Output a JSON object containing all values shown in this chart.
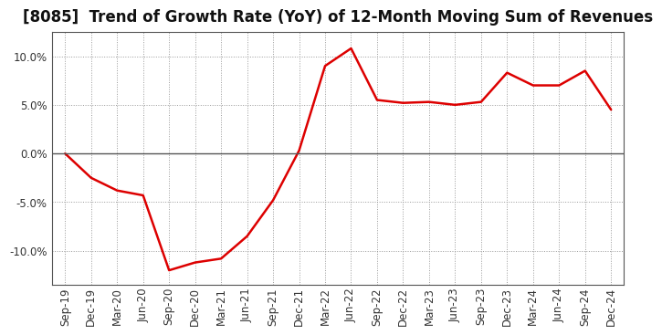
{
  "title": "[8085]  Trend of Growth Rate (YoY) of 12-Month Moving Sum of Revenues",
  "x_labels": [
    "Sep-19",
    "Dec-19",
    "Mar-20",
    "Jun-20",
    "Sep-20",
    "Dec-20",
    "Mar-21",
    "Jun-21",
    "Sep-21",
    "Dec-21",
    "Mar-22",
    "Jun-22",
    "Sep-22",
    "Dec-22",
    "Mar-23",
    "Jun-23",
    "Sep-23",
    "Dec-23",
    "Mar-24",
    "Jun-24",
    "Sep-24",
    "Dec-24"
  ],
  "y_values": [
    0.0,
    -2.5,
    -3.8,
    -4.3,
    -12.0,
    -11.2,
    -10.8,
    -8.5,
    -4.8,
    0.3,
    9.0,
    10.8,
    5.5,
    5.2,
    5.3,
    5.0,
    5.3,
    8.3,
    7.0,
    7.0,
    8.5,
    4.5
  ],
  "line_color": "#dd0000",
  "background_color": "#ffffff",
  "plot_bg_color": "#ffffff",
  "grid_color": "#999999",
  "ylim": [
    -13.5,
    12.5
  ],
  "yticks": [
    -10.0,
    -5.0,
    0.0,
    5.0,
    10.0
  ],
  "title_fontsize": 12,
  "axis_fontsize": 8.5,
  "zero_line_color": "#555555",
  "spine_color": "#555555"
}
